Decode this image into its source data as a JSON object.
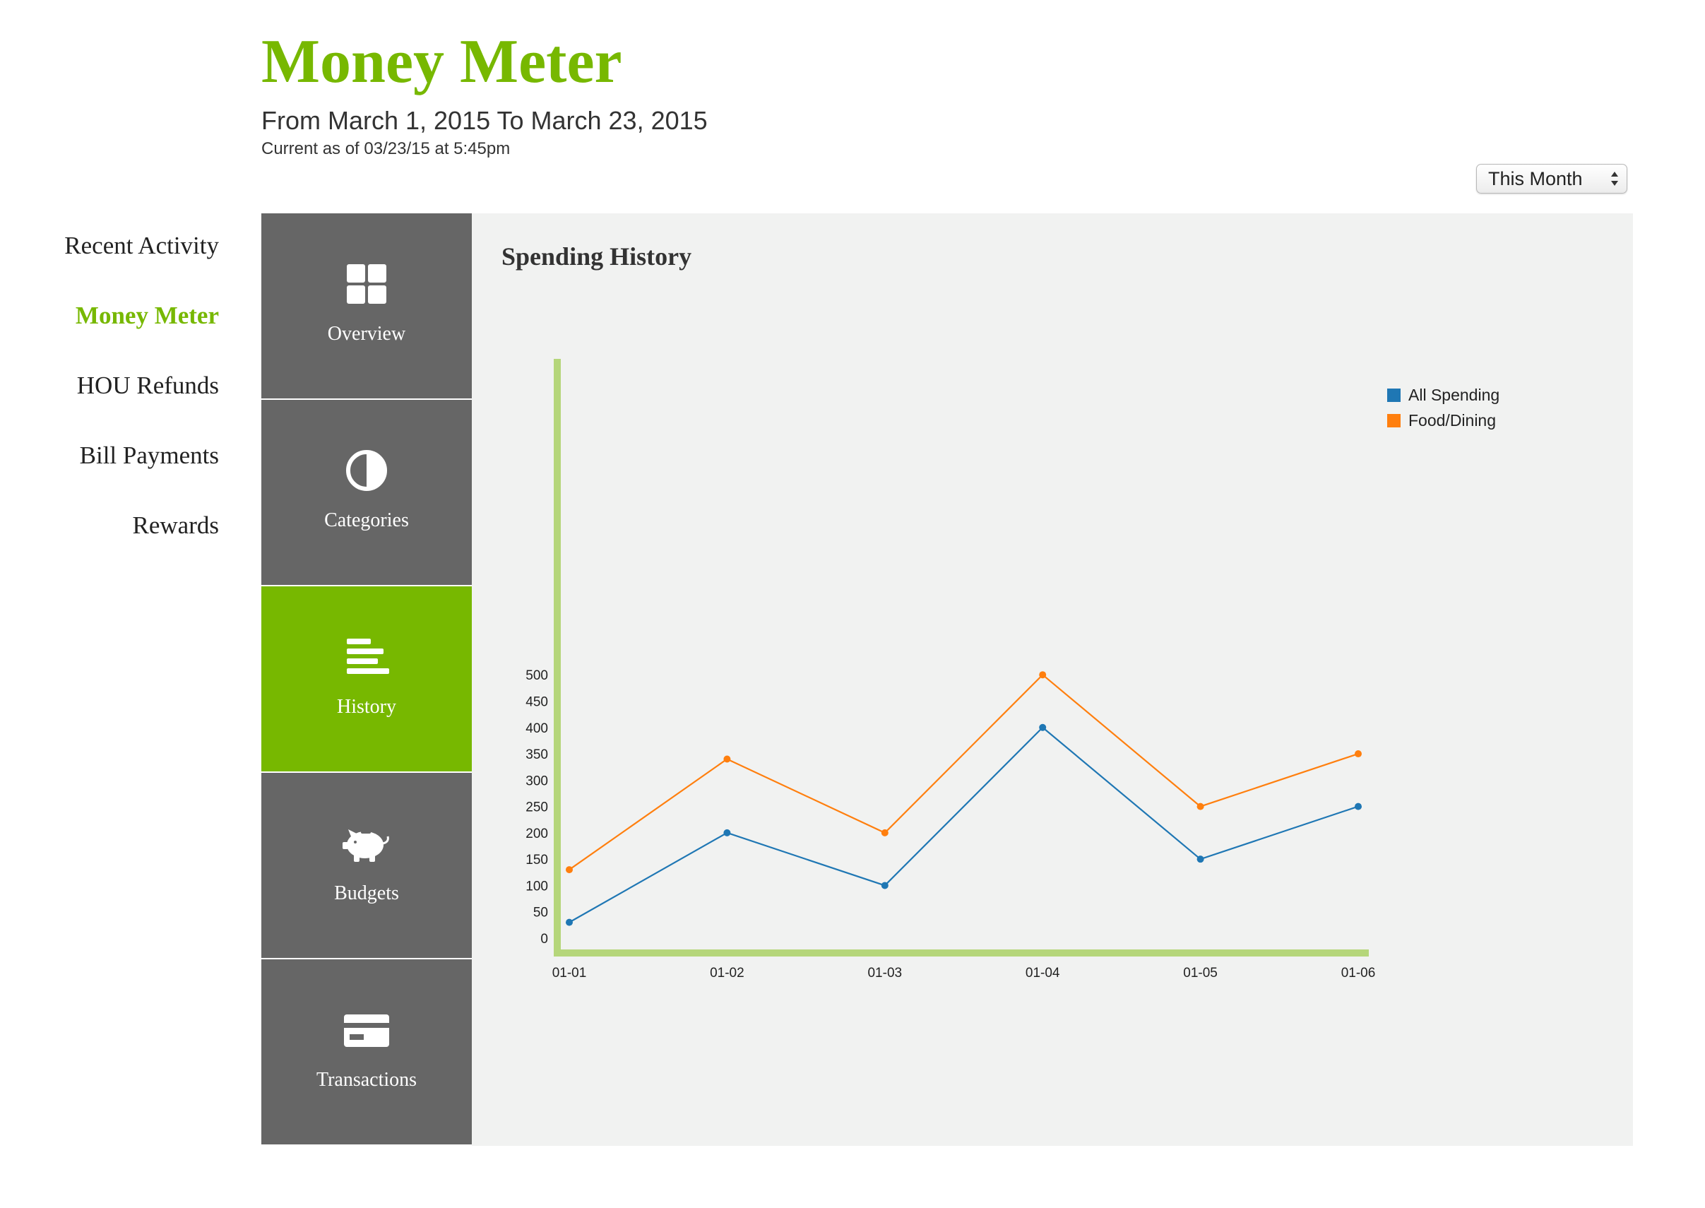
{
  "header": {
    "title": "Money Meter",
    "date_range": "From March 1, 2015 To March 23, 2015",
    "current_as_of": "Current as of 03/23/15 at 5:45pm"
  },
  "period_select": {
    "value": "This Month"
  },
  "left_nav": {
    "items": [
      {
        "label": "Recent Activity",
        "active": false
      },
      {
        "label": "Money Meter",
        "active": true
      },
      {
        "label": "HOU Refunds",
        "active": false
      },
      {
        "label": "Bill Payments",
        "active": false
      },
      {
        "label": "Rewards",
        "active": false
      }
    ]
  },
  "tabs": [
    {
      "label": "Overview",
      "icon": "grid-icon",
      "active": false
    },
    {
      "label": "Categories",
      "icon": "half-circle-icon",
      "active": false
    },
    {
      "label": "History",
      "icon": "bars-icon",
      "active": true
    },
    {
      "label": "Budgets",
      "icon": "piggy-bank-icon",
      "active": false
    },
    {
      "label": "Transactions",
      "icon": "credit-card-icon",
      "active": false
    }
  ],
  "panel": {
    "title": "Spending History"
  },
  "colors": {
    "brand_green": "#77b800",
    "axis_green": "#b5d67a",
    "tab_gray": "#666666",
    "panel_bg": "#f1f2f1"
  },
  "chart_data": {
    "type": "line",
    "title": "Spending History",
    "x": [
      "01-01",
      "01-02",
      "01-03",
      "01-04",
      "01-05",
      "01-06"
    ],
    "series": [
      {
        "name": "All Spending",
        "color": "#1f77b4",
        "values": [
          30,
          200,
          100,
          400,
          150,
          250
        ]
      },
      {
        "name": "Food/Dining",
        "color": "#ff7f0e",
        "values": [
          130,
          340,
          200,
          500,
          250,
          350
        ]
      }
    ],
    "y_ticks": [
      0,
      50,
      100,
      150,
      200,
      250,
      300,
      350,
      400,
      450,
      500
    ],
    "ylim": [
      0,
      500
    ],
    "grid": false,
    "legend": "top-right"
  }
}
